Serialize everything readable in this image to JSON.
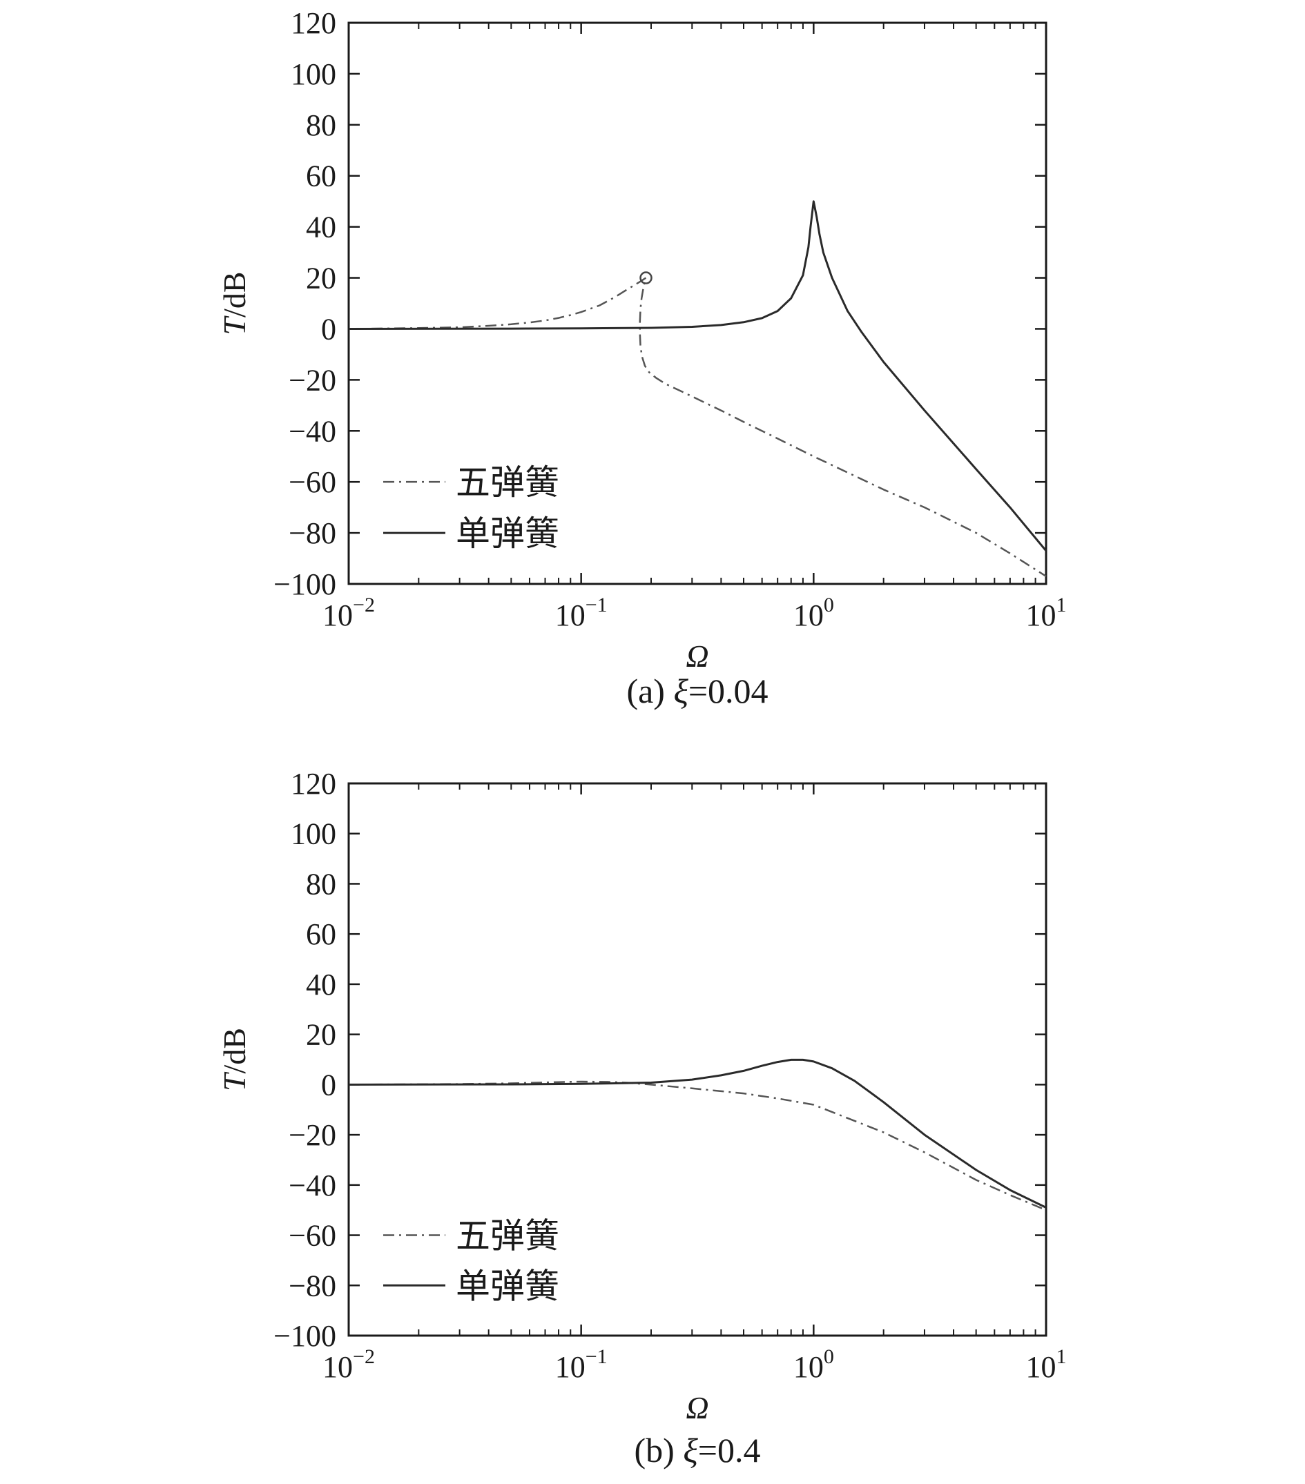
{
  "chart_data": [
    {
      "type": "line",
      "caption_prefix": "(a) ",
      "caption_symbol": "ξ",
      "caption_value": "=0.04",
      "xlabel": "Ω",
      "ylabel_italic": "T",
      "ylabel_unit": "/dB",
      "xscale": "log",
      "xlim": [
        0.01,
        10
      ],
      "ylim": [
        -100,
        120
      ],
      "x_ticks": [
        0.01,
        0.1,
        1,
        10
      ],
      "x_tick_labels": [
        {
          "base": "10",
          "exp": "−2"
        },
        {
          "base": "10",
          "exp": "−1"
        },
        {
          "base": "10",
          "exp": "0"
        },
        {
          "base": "10",
          "exp": "1"
        }
      ],
      "y_ticks": [
        -100,
        -80,
        -60,
        -40,
        -20,
        0,
        20,
        40,
        60,
        80,
        100,
        120
      ],
      "y_tick_labels": [
        "−100",
        "−80",
        "−60",
        "−40",
        "−20",
        "0",
        "20",
        "40",
        "60",
        "80",
        "100",
        "120"
      ],
      "legend_position": "bottom-left",
      "grid": false,
      "series": [
        {
          "name": "五弹簧",
          "style": "dashdot",
          "color": "#555555",
          "points": [
            [
              0.01,
              0
            ],
            [
              0.02,
              0.3
            ],
            [
              0.03,
              0.6
            ],
            [
              0.04,
              1.2
            ],
            [
              0.05,
              1.8
            ],
            [
              0.06,
              2.5
            ],
            [
              0.07,
              3.3
            ],
            [
              0.08,
              4.3
            ],
            [
              0.09,
              5.4
            ],
            [
              0.1,
              6.6
            ],
            [
              0.12,
              9.2
            ],
            [
              0.14,
              12.5
            ],
            [
              0.16,
              15.8
            ],
            [
              0.18,
              18.6
            ],
            [
              0.19,
              20
            ],
            [
              0.186,
              17
            ],
            [
              0.182,
              12
            ],
            [
              0.18,
              8
            ],
            [
              0.179,
              3
            ],
            [
              0.179,
              -2
            ],
            [
              0.18,
              -7
            ],
            [
              0.183,
              -11
            ],
            [
              0.188,
              -14.5
            ],
            [
              0.196,
              -17
            ],
            [
              0.21,
              -19.2
            ],
            [
              0.23,
              -21.5
            ],
            [
              0.27,
              -24.5
            ],
            [
              0.3,
              -26.5
            ],
            [
              0.4,
              -32
            ],
            [
              0.5,
              -36.5
            ],
            [
              0.7,
              -43
            ],
            [
              1,
              -50
            ],
            [
              2,
              -63
            ],
            [
              3,
              -70
            ],
            [
              5,
              -80
            ],
            [
              7,
              -88
            ],
            [
              10,
              -97
            ]
          ]
        },
        {
          "name": "单弹簧",
          "style": "solid",
          "color": "#2a2a2a",
          "points": [
            [
              0.01,
              0
            ],
            [
              0.05,
              0.1
            ],
            [
              0.1,
              0.2
            ],
            [
              0.2,
              0.4
            ],
            [
              0.3,
              0.8
            ],
            [
              0.4,
              1.5
            ],
            [
              0.5,
              2.6
            ],
            [
              0.6,
              4.2
            ],
            [
              0.7,
              7
            ],
            [
              0.8,
              12
            ],
            [
              0.9,
              21
            ],
            [
              0.95,
              32
            ],
            [
              0.97,
              40
            ],
            [
              1,
              50
            ],
            [
              1.03,
              44
            ],
            [
              1.06,
              37
            ],
            [
              1.1,
              30
            ],
            [
              1.2,
              20
            ],
            [
              1.4,
              7
            ],
            [
              1.6,
              -1
            ],
            [
              2,
              -13
            ],
            [
              3,
              -32
            ],
            [
              5,
              -55
            ],
            [
              7,
              -70
            ],
            [
              10,
              -87
            ]
          ]
        }
      ],
      "markers": [
        {
          "series": "五弹簧",
          "x": 0.19,
          "y": 20,
          "shape": "open-circle"
        }
      ]
    },
    {
      "type": "line",
      "caption_prefix": "(b) ",
      "caption_symbol": "ξ",
      "caption_value": "=0.4",
      "xlabel": "Ω",
      "ylabel_italic": "T",
      "ylabel_unit": "/dB",
      "xscale": "log",
      "xlim": [
        0.01,
        10
      ],
      "ylim": [
        -100,
        120
      ],
      "x_ticks": [
        0.01,
        0.1,
        1,
        10
      ],
      "x_tick_labels": [
        {
          "base": "10",
          "exp": "−2"
        },
        {
          "base": "10",
          "exp": "−1"
        },
        {
          "base": "10",
          "exp": "0"
        },
        {
          "base": "10",
          "exp": "1"
        }
      ],
      "y_ticks": [
        -100,
        -80,
        -60,
        -40,
        -20,
        0,
        20,
        40,
        60,
        80,
        100,
        120
      ],
      "y_tick_labels": [
        "−100",
        "−80",
        "−60",
        "−40",
        "−20",
        "0",
        "20",
        "40",
        "60",
        "80",
        "100",
        "120"
      ],
      "legend_position": "bottom-left",
      "grid": false,
      "series": [
        {
          "name": "五弹簧",
          "style": "dashdot",
          "color": "#555555",
          "points": [
            [
              0.01,
              0
            ],
            [
              0.03,
              0.2
            ],
            [
              0.05,
              0.5
            ],
            [
              0.08,
              1
            ],
            [
              0.1,
              1.2
            ],
            [
              0.13,
              1.1
            ],
            [
              0.16,
              0.7
            ],
            [
              0.2,
              0
            ],
            [
              0.3,
              -1.5
            ],
            [
              0.5,
              -3.5
            ],
            [
              0.7,
              -5.5
            ],
            [
              1,
              -8
            ],
            [
              2,
              -19
            ],
            [
              3,
              -27
            ],
            [
              5,
              -38
            ],
            [
              7,
              -44
            ],
            [
              10,
              -50
            ]
          ]
        },
        {
          "name": "单弹簧",
          "style": "solid",
          "color": "#2a2a2a",
          "points": [
            [
              0.01,
              0
            ],
            [
              0.05,
              0.1
            ],
            [
              0.1,
              0.3
            ],
            [
              0.2,
              0.8
            ],
            [
              0.3,
              2
            ],
            [
              0.4,
              3.7
            ],
            [
              0.5,
              5.5
            ],
            [
              0.6,
              7.5
            ],
            [
              0.7,
              9
            ],
            [
              0.8,
              9.9
            ],
            [
              0.9,
              9.9
            ],
            [
              1,
              9.2
            ],
            [
              1.2,
              6.5
            ],
            [
              1.5,
              1.5
            ],
            [
              2,
              -7
            ],
            [
              3,
              -20
            ],
            [
              5,
              -34
            ],
            [
              7,
              -42
            ],
            [
              10,
              -49
            ]
          ]
        }
      ]
    }
  ]
}
